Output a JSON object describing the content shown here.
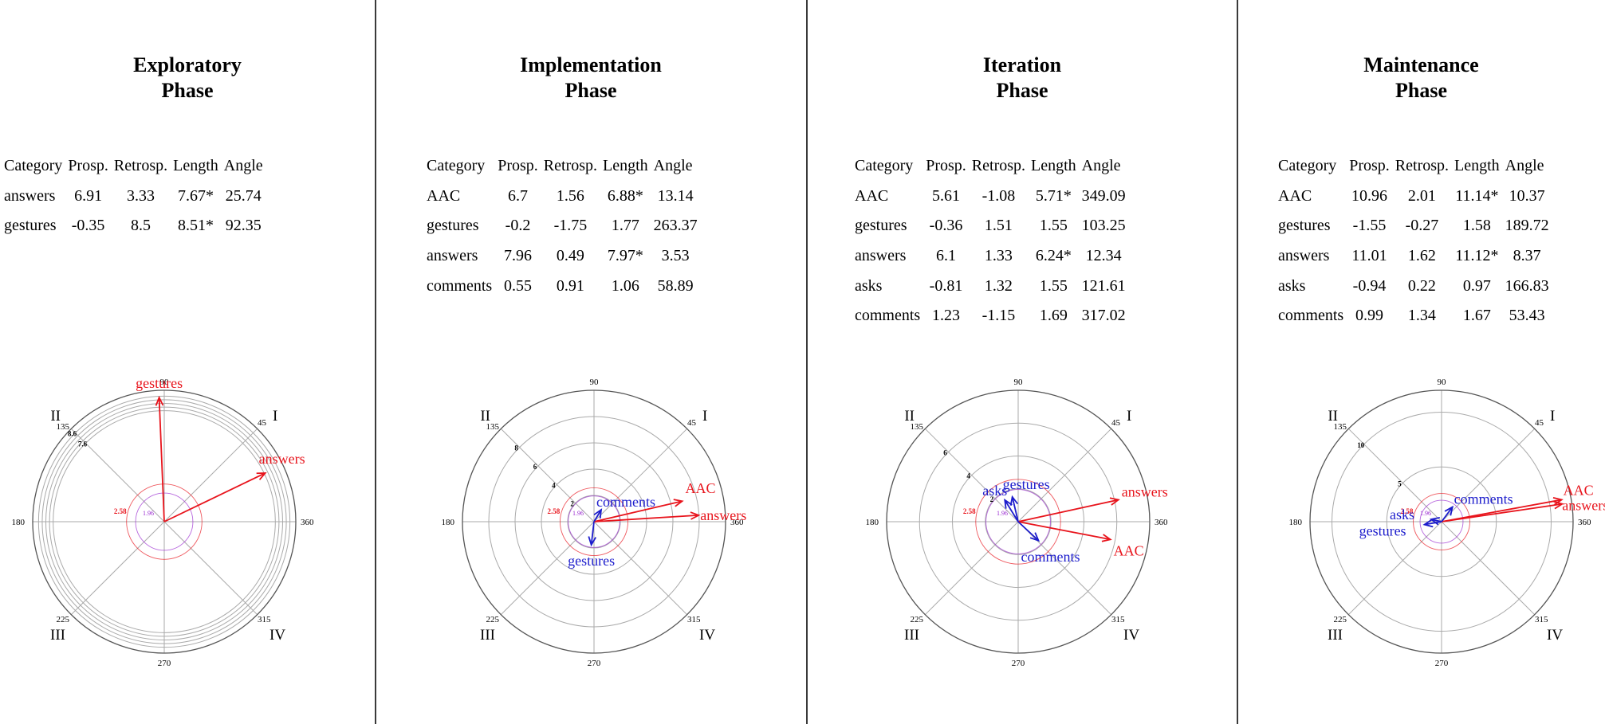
{
  "table_headers": [
    "Category",
    "Prosp.",
    "Retrosp.",
    "Length",
    "Angle"
  ],
  "quadrant_labels": [
    "I",
    "II",
    "III",
    "IV"
  ],
  "angle_labels": [
    "45",
    "90",
    "135",
    "180",
    "225",
    "270",
    "315",
    "360"
  ],
  "sig_labels": {
    "red": "2.58",
    "purple": "1.96"
  },
  "colors": {
    "significant": "#e8141c",
    "nonsignificant": "#1c1ccc",
    "sig_circle_red": "#e8141c",
    "sig_circle_purple": "#9a2ad0",
    "grid": "#aaaaaa",
    "divider": "#3a3a3a"
  },
  "panels": [
    {
      "title": [
        "Exploratory",
        "Phase"
      ],
      "rows": [
        {
          "category": "answers",
          "prosp": "6.91",
          "retrosp": "3.33",
          "length": "7.67*",
          "angle": "25.74"
        },
        {
          "category": "gestures",
          "prosp": "-0.35",
          "retrosp": "8.5",
          "length": "8.51*",
          "angle": "92.35"
        }
      ],
      "ring_labels": [
        "7.6",
        "8.6"
      ]
    },
    {
      "title": [
        "Implementation",
        "Phase"
      ],
      "rows": [
        {
          "category": "AAC",
          "prosp": "6.7",
          "retrosp": "1.56",
          "length": "6.88*",
          "angle": "13.14"
        },
        {
          "category": "gestures",
          "prosp": "-0.2",
          "retrosp": "-1.75",
          "length": "1.77",
          "angle": "263.37"
        },
        {
          "category": "answers",
          "prosp": "7.96",
          "retrosp": "0.49",
          "length": "7.97*",
          "angle": "3.53"
        },
        {
          "category": "comments",
          "prosp": "0.55",
          "retrosp": "0.91",
          "length": "1.06",
          "angle": "58.89"
        }
      ],
      "ring_labels": [
        "2",
        "4",
        "6",
        "8"
      ]
    },
    {
      "title": [
        "Iteration",
        "Phase"
      ],
      "rows": [
        {
          "category": "AAC",
          "prosp": "5.61",
          "retrosp": "-1.08",
          "length": "5.71*",
          "angle": "349.09"
        },
        {
          "category": "gestures",
          "prosp": "-0.36",
          "retrosp": "1.51",
          "length": "1.55",
          "angle": "103.25"
        },
        {
          "category": "answers",
          "prosp": "6.1",
          "retrosp": "1.33",
          "length": "6.24*",
          "angle": "12.34"
        },
        {
          "category": "asks",
          "prosp": "-0.81",
          "retrosp": "1.32",
          "length": "1.55",
          "angle": "121.61"
        },
        {
          "category": "comments",
          "prosp": "1.23",
          "retrosp": "-1.15",
          "length": "1.69",
          "angle": "317.02"
        }
      ],
      "ring_labels": [
        "2",
        "4",
        "6"
      ]
    },
    {
      "title": [
        "Maintenance",
        "Phase"
      ],
      "rows": [
        {
          "category": "AAC",
          "prosp": "10.96",
          "retrosp": "2.01",
          "length": "11.14*",
          "angle": "10.37"
        },
        {
          "category": "gestures",
          "prosp": "-1.55",
          "retrosp": "-0.27",
          "length": "1.58",
          "angle": "189.72"
        },
        {
          "category": "answers",
          "prosp": "11.01",
          "retrosp": "1.62",
          "length": "11.12*",
          "angle": "8.37"
        },
        {
          "category": "asks",
          "prosp": "-0.94",
          "retrosp": "0.22",
          "length": "0.97",
          "angle": "166.83"
        },
        {
          "category": "comments",
          "prosp": "0.99",
          "retrosp": "1.34",
          "length": "1.67",
          "angle": "53.43"
        }
      ],
      "ring_labels": [
        "5",
        "10"
      ]
    }
  ],
  "chart_data": [
    {
      "type": "polar-vector",
      "phase": "Exploratory Phase",
      "rmax": 9.0,
      "rings": [
        7.6,
        7.85,
        8.1,
        8.35,
        8.6
      ],
      "ring_labels": [
        7.6,
        8.6
      ],
      "sig_circles": [
        1.96,
        2.58
      ],
      "vectors": [
        {
          "name": "answers",
          "length": 7.67,
          "angle": 25.74,
          "significant": true
        },
        {
          "name": "gestures",
          "length": 8.51,
          "angle": 92.35,
          "significant": true
        }
      ]
    },
    {
      "type": "polar-vector",
      "phase": "Implementation Phase",
      "rmax": 10,
      "rings": [
        2,
        4,
        6,
        8
      ],
      "ring_labels": [
        2,
        4,
        6,
        8
      ],
      "sig_circles": [
        1.96,
        2.58
      ],
      "vectors": [
        {
          "name": "AAC",
          "length": 6.88,
          "angle": 13.14,
          "significant": true
        },
        {
          "name": "gestures",
          "length": 1.77,
          "angle": 263.37,
          "significant": false
        },
        {
          "name": "answers",
          "length": 7.97,
          "angle": 3.53,
          "significant": true
        },
        {
          "name": "comments",
          "length": 1.06,
          "angle": 58.89,
          "significant": false
        }
      ]
    },
    {
      "type": "polar-vector",
      "phase": "Iteration Phase",
      "rmax": 8,
      "rings": [
        2,
        4,
        6
      ],
      "ring_labels": [
        2,
        4,
        6
      ],
      "sig_circles": [
        1.96,
        2.58
      ],
      "vectors": [
        {
          "name": "AAC",
          "length": 5.71,
          "angle": 349.09,
          "significant": true
        },
        {
          "name": "gestures",
          "length": 1.55,
          "angle": 103.25,
          "significant": false
        },
        {
          "name": "answers",
          "length": 6.24,
          "angle": 12.34,
          "significant": true
        },
        {
          "name": "asks",
          "length": 1.55,
          "angle": 121.61,
          "significant": false
        },
        {
          "name": "comments",
          "length": 1.69,
          "angle": 317.02,
          "significant": false
        }
      ]
    },
    {
      "type": "polar-vector",
      "phase": "Maintenance Phase",
      "rmax": 12,
      "rings": [
        5,
        10
      ],
      "ring_labels": [
        5,
        10
      ],
      "sig_circles": [
        1.96,
        2.58
      ],
      "vectors": [
        {
          "name": "AAC",
          "length": 11.14,
          "angle": 10.37,
          "significant": true
        },
        {
          "name": "gestures",
          "length": 1.58,
          "angle": 189.72,
          "significant": false
        },
        {
          "name": "answers",
          "length": 11.12,
          "angle": 8.37,
          "significant": true
        },
        {
          "name": "asks",
          "length": 0.97,
          "angle": 166.83,
          "significant": false
        },
        {
          "name": "comments",
          "length": 1.67,
          "angle": 53.43,
          "significant": false
        }
      ]
    }
  ]
}
